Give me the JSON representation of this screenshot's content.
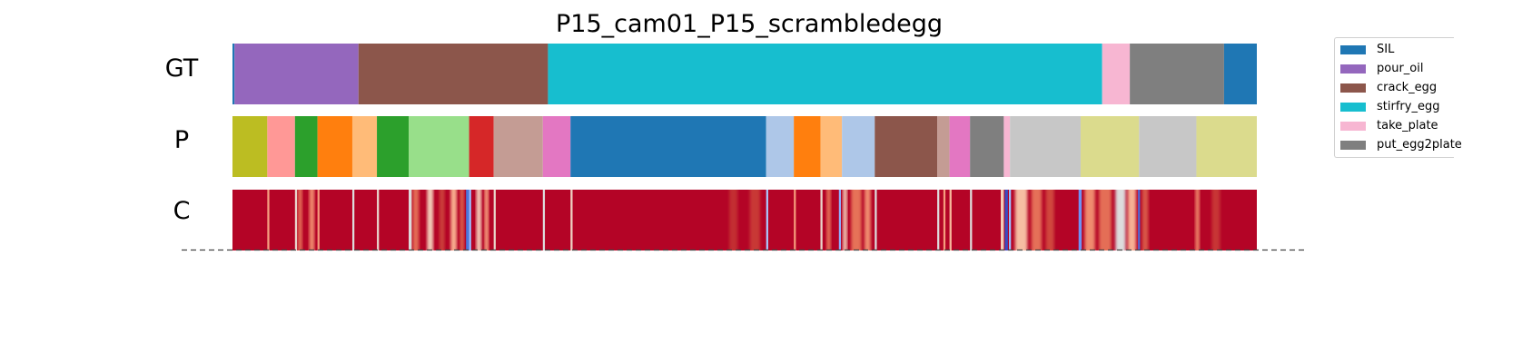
{
  "chart_data": {
    "type": "segmentation-timeline",
    "title": "P15_cam01_P15_scrambledegg",
    "rows": [
      "GT",
      "P",
      "C"
    ],
    "x_range": [
      0,
      1
    ],
    "legend": [
      {
        "label": "SIL",
        "color": "#1f77b4"
      },
      {
        "label": "pour_oil",
        "color": "#9467bd"
      },
      {
        "label": "crack_egg",
        "color": "#8c564b"
      },
      {
        "label": "stirfry_egg",
        "color": "#17becf"
      },
      {
        "label": "take_plate",
        "color": "#f7b6d2"
      },
      {
        "label": "put_egg2plate",
        "color": "#7f7f7f"
      }
    ],
    "gt_segments": [
      {
        "start": 0.0,
        "end": 0.002,
        "color": "#1f77b4"
      },
      {
        "start": 0.002,
        "end": 0.123,
        "color": "#9467bd"
      },
      {
        "start": 0.123,
        "end": 0.308,
        "color": "#8c564b"
      },
      {
        "start": 0.308,
        "end": 0.849,
        "color": "#17becf"
      },
      {
        "start": 0.849,
        "end": 0.876,
        "color": "#f7b6d2"
      },
      {
        "start": 0.876,
        "end": 0.968,
        "color": "#7f7f7f"
      },
      {
        "start": 0.968,
        "end": 1.0,
        "color": "#1f77b4"
      }
    ],
    "p_segments": [
      {
        "start": 0.0,
        "end": 0.034,
        "color": "#bcbd22"
      },
      {
        "start": 0.034,
        "end": 0.061,
        "color": "#ff9896"
      },
      {
        "start": 0.061,
        "end": 0.083,
        "color": "#2ca02c"
      },
      {
        "start": 0.083,
        "end": 0.117,
        "color": "#ff7f0e"
      },
      {
        "start": 0.117,
        "end": 0.141,
        "color": "#ffbb78"
      },
      {
        "start": 0.141,
        "end": 0.172,
        "color": "#2ca02c"
      },
      {
        "start": 0.172,
        "end": 0.231,
        "color": "#98df8a"
      },
      {
        "start": 0.231,
        "end": 0.255,
        "color": "#d62728"
      },
      {
        "start": 0.255,
        "end": 0.303,
        "color": "#c49c94"
      },
      {
        "start": 0.303,
        "end": 0.33,
        "color": "#e377c2"
      },
      {
        "start": 0.33,
        "end": 0.521,
        "color": "#1f77b4"
      },
      {
        "start": 0.521,
        "end": 0.548,
        "color": "#aec7e8"
      },
      {
        "start": 0.548,
        "end": 0.574,
        "color": "#ff7f0e"
      },
      {
        "start": 0.574,
        "end": 0.595,
        "color": "#ffbb78"
      },
      {
        "start": 0.595,
        "end": 0.627,
        "color": "#aec7e8"
      },
      {
        "start": 0.627,
        "end": 0.688,
        "color": "#8c564b"
      },
      {
        "start": 0.688,
        "end": 0.7,
        "color": "#c49c94"
      },
      {
        "start": 0.7,
        "end": 0.72,
        "color": "#e377c2"
      },
      {
        "start": 0.72,
        "end": 0.753,
        "color": "#7f7f7f"
      },
      {
        "start": 0.753,
        "end": 0.759,
        "color": "#f7b6d2"
      },
      {
        "start": 0.759,
        "end": 0.828,
        "color": "#c7c7c7"
      },
      {
        "start": 0.828,
        "end": 0.885,
        "color": "#dbdb8d"
      },
      {
        "start": 0.885,
        "end": 0.941,
        "color": "#c7c7c7"
      },
      {
        "start": 0.941,
        "end": 1.0,
        "color": "#dbdb8d"
      }
    ],
    "c_base_color": "#b40426",
    "c_stripes": [
      {
        "at": 0.034,
        "width": 0.002,
        "color": "#f5a081"
      },
      {
        "at": 0.061,
        "width": 0.002,
        "color": "#e9d5cb"
      },
      {
        "at": 0.064,
        "width": 0.004,
        "color": "#e57058"
      },
      {
        "at": 0.075,
        "width": 0.005,
        "color": "#f08b6e"
      },
      {
        "at": 0.083,
        "width": 0.002,
        "color": "#f4987a"
      },
      {
        "at": 0.117,
        "width": 0.002,
        "color": "#dddcdc"
      },
      {
        "at": 0.141,
        "width": 0.002,
        "color": "#e8d6cc"
      },
      {
        "at": 0.172,
        "width": 0.003,
        "color": "#dddcdc"
      },
      {
        "at": 0.176,
        "width": 0.006,
        "color": "#e36c55"
      },
      {
        "at": 0.19,
        "width": 0.006,
        "color": "#f2cbb7"
      },
      {
        "at": 0.202,
        "width": 0.005,
        "color": "#cc403a"
      },
      {
        "at": 0.213,
        "width": 0.006,
        "color": "#f7ac8e"
      },
      {
        "at": 0.222,
        "width": 0.004,
        "color": "#dd5f4b"
      },
      {
        "at": 0.228,
        "width": 0.003,
        "color": "#4a78dc"
      },
      {
        "at": 0.231,
        "width": 0.002,
        "color": "#9dbdff"
      },
      {
        "at": 0.238,
        "width": 0.005,
        "color": "#f2cbb7"
      },
      {
        "at": 0.246,
        "width": 0.004,
        "color": "#f59c7d"
      },
      {
        "at": 0.255,
        "width": 0.002,
        "color": "#e9d5cb"
      },
      {
        "at": 0.303,
        "width": 0.002,
        "color": "#dddcdc"
      },
      {
        "at": 0.33,
        "width": 0.002,
        "color": "#edd1c2"
      },
      {
        "at": 0.485,
        "width": 0.008,
        "color": "#c32e31"
      },
      {
        "at": 0.505,
        "width": 0.01,
        "color": "#c83836"
      },
      {
        "at": 0.521,
        "width": 0.002,
        "color": "#aac7fd"
      },
      {
        "at": 0.548,
        "width": 0.002,
        "color": "#f49a7b"
      },
      {
        "at": 0.574,
        "width": 0.002,
        "color": "#e9d5cb"
      },
      {
        "at": 0.58,
        "width": 0.004,
        "color": "#e67259"
      },
      {
        "at": 0.592,
        "width": 0.002,
        "color": "#8db0fe"
      },
      {
        "at": 0.596,
        "width": 0.004,
        "color": "#f2cbb7"
      },
      {
        "at": 0.604,
        "width": 0.01,
        "color": "#e67259"
      },
      {
        "at": 0.617,
        "width": 0.006,
        "color": "#f08b6e"
      },
      {
        "at": 0.627,
        "width": 0.002,
        "color": "#dddcdc"
      },
      {
        "at": 0.688,
        "width": 0.002,
        "color": "#dddcdc"
      },
      {
        "at": 0.694,
        "width": 0.002,
        "color": "#f59c7d"
      },
      {
        "at": 0.7,
        "width": 0.002,
        "color": "#f7b89c"
      },
      {
        "at": 0.72,
        "width": 0.002,
        "color": "#dddcdc"
      },
      {
        "at": 0.75,
        "width": 0.003,
        "color": "#f2cbb7"
      },
      {
        "at": 0.754,
        "width": 0.003,
        "color": "#3b4cc0"
      },
      {
        "at": 0.758,
        "width": 0.002,
        "color": "#9dbdff"
      },
      {
        "at": 0.764,
        "width": 0.012,
        "color": "#f6bda2"
      },
      {
        "at": 0.78,
        "width": 0.01,
        "color": "#e57058"
      },
      {
        "at": 0.794,
        "width": 0.008,
        "color": "#d0473d"
      },
      {
        "at": 0.826,
        "width": 0.003,
        "color": "#6f92f3"
      },
      {
        "at": 0.832,
        "width": 0.01,
        "color": "#f08b6e"
      },
      {
        "at": 0.846,
        "width": 0.012,
        "color": "#e46e56"
      },
      {
        "at": 0.862,
        "width": 0.01,
        "color": "#dddcdc"
      },
      {
        "at": 0.874,
        "width": 0.008,
        "color": "#f7b194"
      },
      {
        "at": 0.884,
        "width": 0.002,
        "color": "#4f69d9"
      },
      {
        "at": 0.888,
        "width": 0.006,
        "color": "#d85646"
      },
      {
        "at": 0.94,
        "width": 0.004,
        "color": "#ee8468"
      },
      {
        "at": 0.956,
        "width": 0.008,
        "color": "#c73635"
      }
    ]
  }
}
